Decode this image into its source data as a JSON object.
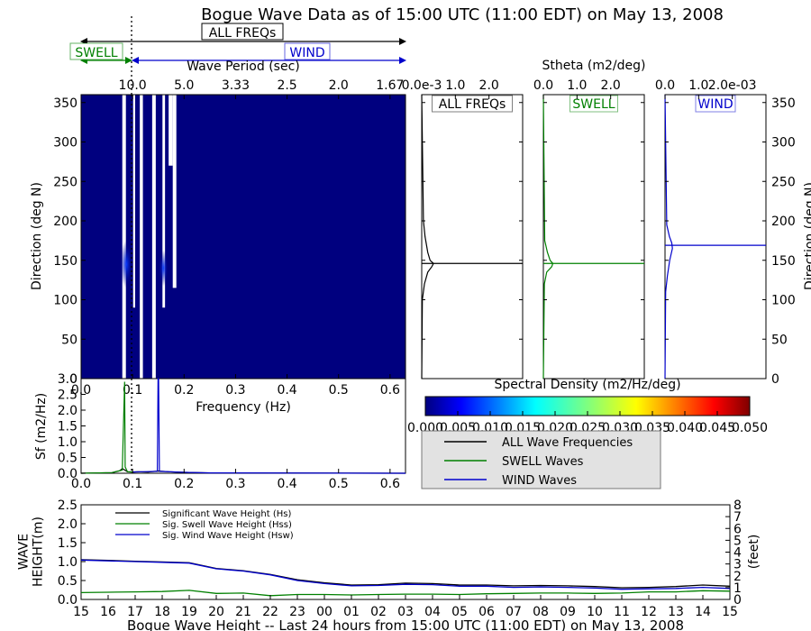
{
  "title": "Bogue Wave Data as of 15:00 UTC (11:00 EDT) on May 13, 2008",
  "bottom_title": "Bogue Wave Height -- Last 24 hours from 15:00 UTC (11:00 EDT) on May 13, 2008",
  "band_labels": {
    "all": "ALL FREQs",
    "swell": "SWELL",
    "wind": "WIND"
  },
  "colors": {
    "all": "#000000",
    "swell": "#008000",
    "wind": "#0000cc",
    "field": "#00007f"
  },
  "chart_data": [
    {
      "id": "directional_spectrum",
      "type": "heatmap",
      "xlabel": "Frequency (Hz)",
      "ylabel": "Direction (deg N)",
      "top_xlabel": "Wave Period (sec)",
      "xlim": [
        0.0,
        0.63
      ],
      "ylim": [
        0,
        360
      ],
      "xticks": [
        "0.0",
        "0.1",
        "0.2",
        "0.3",
        "0.4",
        "0.5",
        "0.6"
      ],
      "yticks": [
        "0",
        "50",
        "100",
        "150",
        "200",
        "250",
        "300",
        "350"
      ],
      "period_ticks": [
        {
          "label": "10.0",
          "freq": 0.1
        },
        {
          "label": "5.0",
          "freq": 0.2
        },
        {
          "label": "3.33",
          "freq": 0.3
        },
        {
          "label": "2.5",
          "freq": 0.4
        },
        {
          "label": "2.0",
          "freq": 0.5
        },
        {
          "label": "1.67",
          "freq": 0.6
        }
      ],
      "background_value": 0.0,
      "gap_columns": [
        {
          "x0": 0.08,
          "x1": 0.087,
          "y0": 0,
          "y1": 360
        },
        {
          "x0": 0.101,
          "x1": 0.105,
          "y0": 90,
          "y1": 360
        },
        {
          "x0": 0.114,
          "x1": 0.12,
          "y0": 0,
          "y1": 360
        },
        {
          "x0": 0.138,
          "x1": 0.145,
          "y0": 0,
          "y1": 360
        },
        {
          "x0": 0.158,
          "x1": 0.163,
          "y0": 90,
          "y1": 360
        },
        {
          "x0": 0.17,
          "x1": 0.178,
          "y0": 270,
          "y1": 360
        },
        {
          "x0": 0.178,
          "x1": 0.185,
          "y0": 115,
          "y1": 360
        }
      ],
      "highlights": [
        {
          "freq": 0.088,
          "dir": 145,
          "value": 0.006
        },
        {
          "freq": 0.16,
          "dir": 140,
          "value": 0.003
        }
      ],
      "swell_wind_separation_freq": 0.101
    },
    {
      "id": "frequency_spectrum",
      "type": "line",
      "xlabel": "Frequency (Hz)",
      "ylabel": "Sf (m2/Hz)",
      "xlim": [
        0.0,
        0.63
      ],
      "ylim": [
        0.0,
        3.0
      ],
      "xticks": [
        "0.0",
        "0.1",
        "0.2",
        "0.3",
        "0.4",
        "0.5",
        "0.6"
      ],
      "yticks": [
        "0.0",
        "0.5",
        "1.0",
        "1.5",
        "2.0",
        "2.5",
        "3.0"
      ],
      "series": [
        {
          "key": "all",
          "x": [
            0.0,
            0.06,
            0.075,
            0.08,
            0.085,
            0.09,
            0.1,
            0.11,
            0.13,
            0.15,
            0.17,
            0.2,
            0.25,
            0.63
          ],
          "y": [
            0.0,
            0.02,
            0.08,
            0.15,
            0.1,
            0.05,
            0.04,
            0.05,
            0.04,
            0.07,
            0.05,
            0.03,
            0.01,
            0.0
          ]
        },
        {
          "key": "swell",
          "x": [
            0.0,
            0.06,
            0.08,
            0.0845,
            0.0855,
            0.09,
            0.1,
            0.101
          ],
          "y": [
            0.0,
            0.02,
            0.1,
            2.9,
            0.2,
            0.05,
            0.04,
            0.04
          ]
        },
        {
          "key": "wind",
          "x": [
            0.101,
            0.12,
            0.148,
            0.1495,
            0.1505,
            0.152,
            0.2,
            0.25,
            0.63
          ],
          "y": [
            0.04,
            0.05,
            0.06,
            3.0,
            3.0,
            0.06,
            0.03,
            0.01,
            0.0
          ]
        }
      ]
    },
    {
      "id": "directional_distribution",
      "type": "line",
      "top_label": "Stheta (m2/deg)",
      "ylabel": "Direction (deg N)",
      "ylim": [
        0,
        360
      ],
      "yticks": [
        "0",
        "50",
        "100",
        "150",
        "200",
        "250",
        "300",
        "350"
      ],
      "panels": [
        {
          "key": "all",
          "label": "ALL FREQs",
          "xticks": [
            "0.0e-3",
            "1.0",
            "2.0"
          ],
          "xmax": 3.0,
          "mean_dir": 146,
          "dirs": [
            0,
            100,
            120,
            135,
            142,
            146,
            150,
            160,
            180,
            200,
            360
          ],
          "vals": [
            0,
            0.02,
            0.08,
            0.18,
            0.3,
            0.35,
            0.25,
            0.18,
            0.1,
            0.05,
            0
          ]
        },
        {
          "key": "swell",
          "label": "SWELL",
          "xticks": [
            "0.0",
            "1.0",
            "2.0"
          ],
          "xmax": 3.0,
          "mean_dir": 146,
          "dirs": [
            0,
            120,
            135,
            142,
            146,
            150,
            160,
            175,
            360
          ],
          "vals": [
            0,
            0.03,
            0.1,
            0.25,
            0.28,
            0.2,
            0.12,
            0.04,
            0
          ]
        },
        {
          "key": "wind",
          "label": "WIND",
          "xticks": [
            "0.0",
            "1.0",
            "2.0e-03"
          ],
          "xmax": 3.0,
          "mean_dir": 169,
          "dirs": [
            0,
            110,
            130,
            150,
            165,
            172,
            180,
            195,
            360
          ],
          "vals": [
            0,
            0.02,
            0.07,
            0.14,
            0.22,
            0.2,
            0.13,
            0.05,
            0
          ]
        }
      ]
    },
    {
      "id": "colorbar",
      "type": "heatmap",
      "label": "Spectral Density (m2/Hz/deg)",
      "range": [
        0.0,
        0.05
      ],
      "ticks": [
        "0.000",
        "0.005",
        "0.010",
        "0.015",
        "0.020",
        "0.025",
        "0.030",
        "0.035",
        "0.040",
        "0.045",
        "0.050"
      ]
    },
    {
      "id": "legend",
      "entries": [
        {
          "key": "all",
          "label": "ALL Wave Frequencies"
        },
        {
          "key": "swell",
          "label": "SWELL Waves"
        },
        {
          "key": "wind",
          "label": "WIND Waves"
        }
      ]
    },
    {
      "id": "wave_height_timeseries",
      "type": "line",
      "ylabel": "WAVE HEIGHT(m)",
      "y2label": "(feet)",
      "ylim": [
        0.0,
        2.5
      ],
      "y2lim": [
        0,
        8
      ],
      "yticks": [
        "0.0",
        "0.5",
        "1.0",
        "1.5",
        "2.0",
        "2.5"
      ],
      "y2ticks": [
        "0",
        "1",
        "2",
        "3",
        "4",
        "5",
        "6",
        "7",
        "8"
      ],
      "categories": [
        "15",
        "16",
        "17",
        "18",
        "19",
        "20",
        "21",
        "22",
        "23",
        "00",
        "01",
        "02",
        "03",
        "04",
        "05",
        "06",
        "07",
        "08",
        "09",
        "10",
        "11",
        "12",
        "13",
        "14",
        "15"
      ],
      "legend": [
        "Significant Wave Height (Hs)",
        "Sig. Swell Wave Height (Hss)",
        "Sig. Wind Wave Height (Hsw)"
      ],
      "series": [
        {
          "key": "all",
          "name": "Significant Wave Height (Hs)",
          "values": [
            1.05,
            1.03,
            1.01,
            0.99,
            0.97,
            0.82,
            0.76,
            0.66,
            0.52,
            0.44,
            0.38,
            0.39,
            0.43,
            0.42,
            0.38,
            0.38,
            0.36,
            0.37,
            0.36,
            0.34,
            0.31,
            0.32,
            0.34,
            0.38,
            0.35
          ]
        },
        {
          "key": "swell",
          "name": "Sig. Swell Wave Height (Hss)",
          "values": [
            0.18,
            0.19,
            0.2,
            0.21,
            0.24,
            0.16,
            0.17,
            0.1,
            0.13,
            0.13,
            0.12,
            0.13,
            0.14,
            0.14,
            0.13,
            0.15,
            0.16,
            0.17,
            0.17,
            0.16,
            0.17,
            0.2,
            0.2,
            0.23,
            0.22
          ]
        },
        {
          "key": "wind",
          "name": "Sig. Wind Wave Height (Hsw)",
          "values": [
            1.04,
            1.02,
            1.0,
            0.98,
            0.96,
            0.81,
            0.75,
            0.65,
            0.5,
            0.42,
            0.36,
            0.37,
            0.4,
            0.39,
            0.35,
            0.35,
            0.32,
            0.33,
            0.32,
            0.3,
            0.27,
            0.28,
            0.29,
            0.32,
            0.29
          ]
        }
      ]
    }
  ]
}
